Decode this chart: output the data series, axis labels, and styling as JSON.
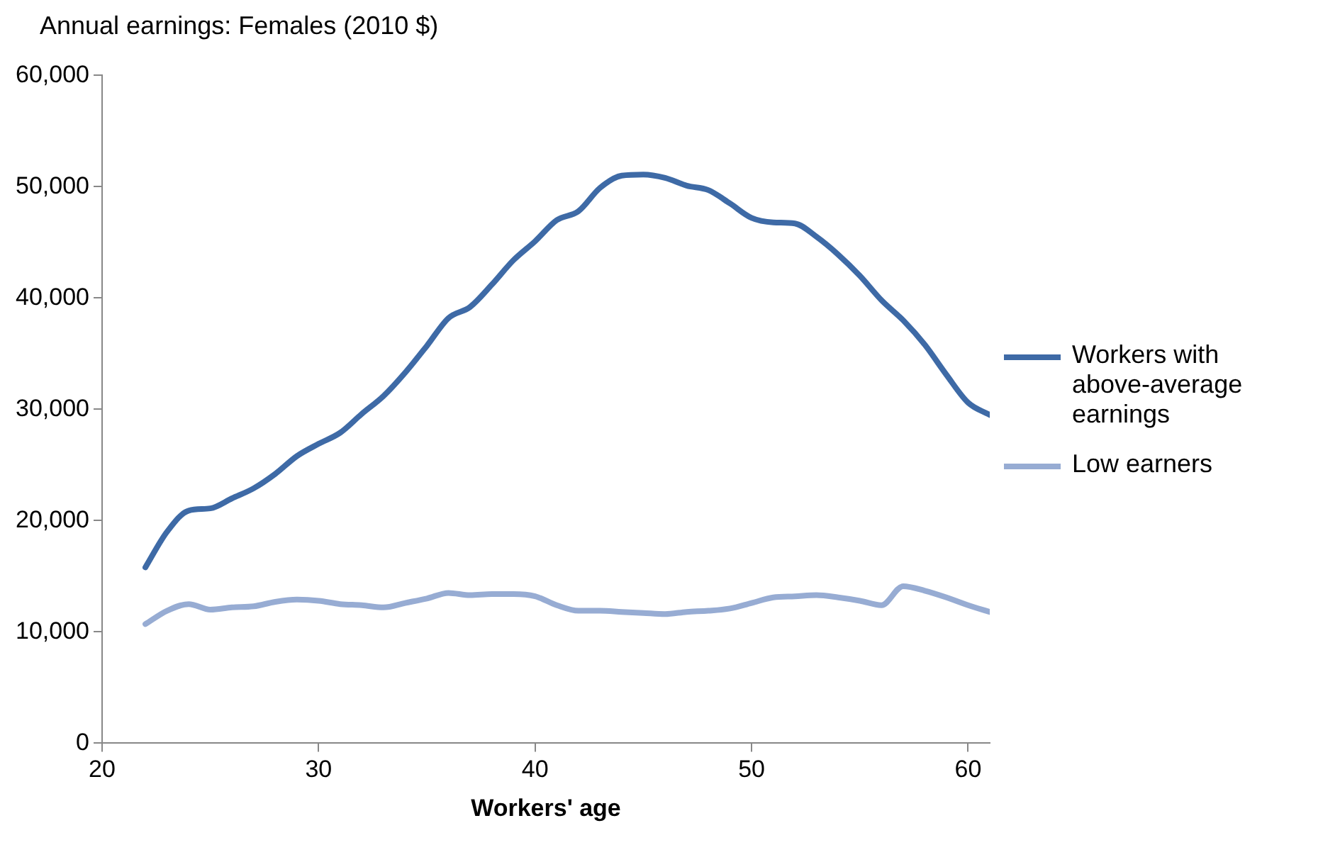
{
  "chart_data": {
    "type": "line",
    "ylabel": "Annual earnings: Females (2010 $)",
    "xlabel": "Workers' age",
    "x": [
      22,
      23,
      24,
      25,
      26,
      27,
      28,
      29,
      30,
      31,
      32,
      33,
      34,
      35,
      36,
      37,
      38,
      39,
      40,
      41,
      42,
      43,
      44,
      45,
      46,
      47,
      48,
      49,
      50,
      51,
      52,
      53,
      54,
      55,
      56,
      57,
      58,
      59,
      60,
      61
    ],
    "series": [
      {
        "name": "Workers with above-average earnings",
        "color": "#3e6aa6",
        "values": [
          15800,
          19000,
          20900,
          21100,
          22000,
          22900,
          24200,
          25800,
          26900,
          27900,
          29600,
          31200,
          33300,
          35700,
          38200,
          39200,
          41200,
          43400,
          45100,
          47000,
          47800,
          49900,
          51000,
          51100,
          50800,
          50100,
          49700,
          48500,
          47200,
          46800,
          46700,
          45500,
          43900,
          42000,
          39800,
          38000,
          35800,
          33100,
          30600,
          29500
        ]
      },
      {
        "name": "Low earners",
        "color": "#97acd3",
        "values": [
          10700,
          11900,
          12500,
          12000,
          12200,
          12300,
          12700,
          12900,
          12800,
          12500,
          12400,
          12200,
          12600,
          13000,
          13500,
          13300,
          13400,
          13400,
          13200,
          12400,
          11900,
          11900,
          11800,
          11700,
          11600,
          11800,
          11900,
          12100,
          12600,
          13100,
          13200,
          13300,
          13100,
          12800,
          12400,
          14100,
          13700,
          13100,
          12400,
          11800
        ]
      }
    ],
    "xlim": [
      20,
      61
    ],
    "xticks": [
      20,
      30,
      40,
      50,
      60
    ],
    "ylim": [
      0,
      60000
    ],
    "yticks": [
      0,
      {
        "value": 10000,
        "label": "10,000"
      },
      {
        "value": 20000,
        "label": "20,000"
      },
      {
        "value": 30000,
        "label": "30,000"
      },
      {
        "value": 40000,
        "label": "40,000"
      },
      {
        "value": 50000,
        "label": "50,000"
      },
      {
        "value": 60000,
        "label": "60,000"
      }
    ],
    "legend": "right",
    "marker": "none",
    "line_style": "solid"
  }
}
